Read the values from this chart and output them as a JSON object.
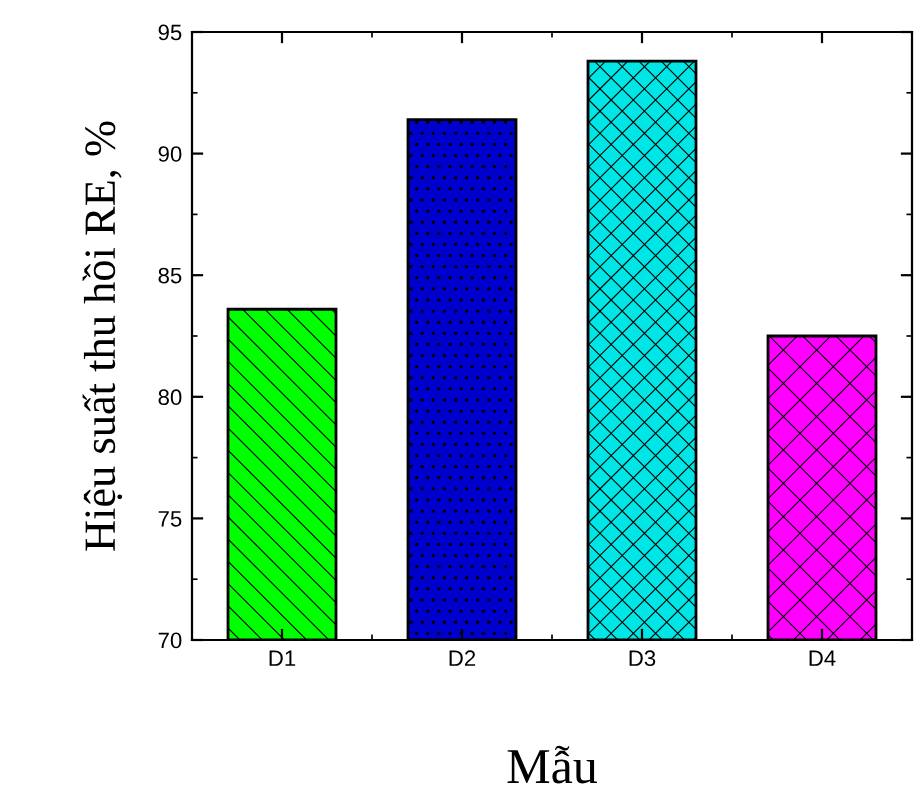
{
  "chart_data": {
    "type": "bar",
    "xlabel": "Mẫu",
    "ylabel": "Hiệu suất thu hồi RE, %",
    "categories": [
      "D1",
      "D2",
      "D3",
      "D4"
    ],
    "values": [
      83.6,
      91.4,
      93.8,
      82.5
    ],
    "colors": [
      "#00ff00",
      "#0000cc",
      "#00e5e5",
      "#ff00ff"
    ],
    "ylim": [
      70,
      95
    ],
    "yticks": [
      70,
      75,
      80,
      85,
      90,
      95
    ],
    "grid": false,
    "legend": false
  }
}
